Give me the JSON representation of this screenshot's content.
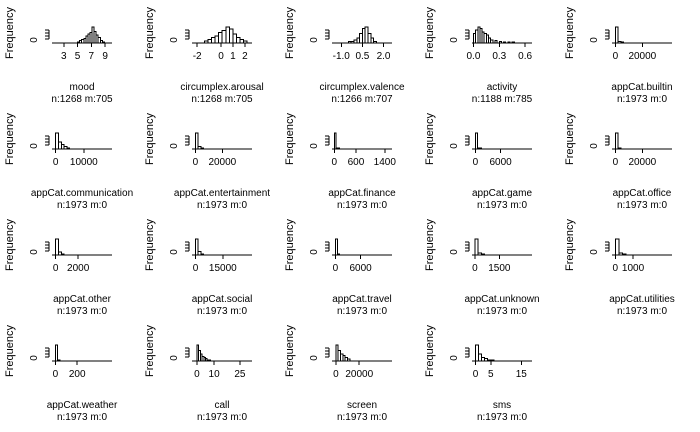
{
  "chart_data": [
    {
      "type": "bar",
      "xlabel": "mood",
      "subtitle": "n:1268 m:705",
      "ylabel": "Frequency",
      "y_tick": "0",
      "x_ticks": [
        "3",
        "5",
        "7",
        "9"
      ],
      "x_tick_values": [
        3,
        5,
        7,
        9
      ],
      "xlim": [
        1,
        10
      ],
      "bins_x": [
        5.0,
        5.3,
        5.6,
        5.9,
        6.2,
        6.5,
        6.8,
        7.1,
        7.4,
        7.7,
        8.0,
        8.3,
        8.6
      ],
      "values": [
        1,
        2,
        3,
        4,
        6,
        8,
        9,
        14,
        10,
        7,
        5,
        2,
        1
      ],
      "ymax": 14
    },
    {
      "type": "bar",
      "xlabel": "circumplex.arousal",
      "subtitle": "n:1268 m:705",
      "ylabel": "Frequency",
      "y_tick": "0",
      "x_ticks": [
        "-2",
        "0",
        "1",
        "2"
      ],
      "x_tick_values": [
        -2,
        0,
        1,
        2
      ],
      "xlim": [
        -2.6,
        2.6
      ],
      "bins_x": [
        -1.4,
        -1.1,
        -0.8,
        -0.5,
        -0.2,
        0.1,
        0.4,
        0.7,
        1.0,
        1.3,
        1.6,
        1.9
      ],
      "values": [
        1,
        2,
        3,
        4,
        6,
        7,
        9,
        8,
        5,
        3,
        2,
        1
      ],
      "ymax": 9
    },
    {
      "type": "bar",
      "xlabel": "circumplex.valence",
      "subtitle": "n:1266 m:707",
      "ylabel": "Frequency",
      "y_tick": "0",
      "x_ticks": [
        "-1.0",
        "0.5",
        "2.0"
      ],
      "x_tick_values": [
        -1,
        0.5,
        2
      ],
      "xlim": [
        -1.8,
        2.6
      ],
      "bins_x": [
        -0.5,
        -0.3,
        -0.1,
        0.1,
        0.3,
        0.5,
        0.7,
        0.9,
        1.1,
        1.3
      ],
      "values": [
        1,
        1,
        2,
        3,
        6,
        9,
        10,
        6,
        3,
        1
      ],
      "ymax": 10
    },
    {
      "type": "bar",
      "xlabel": "activity",
      "subtitle": "n:1188 m:785",
      "ylabel": "Frequency",
      "y_tick": "0",
      "x_ticks": [
        "0.0",
        "0.3",
        "0.6"
      ],
      "x_tick_values": [
        0,
        0.3,
        0.6
      ],
      "xlim": [
        -0.04,
        0.68
      ],
      "bins_x": [
        0.0,
        0.025,
        0.05,
        0.075,
        0.1,
        0.125,
        0.15,
        0.175,
        0.2,
        0.25,
        0.3,
        0.35,
        0.4,
        0.45
      ],
      "values": [
        6,
        8,
        10,
        9,
        7,
        6,
        5,
        3,
        2,
        1.5,
        1,
        0.5,
        0.5,
        0.3
      ],
      "ymax": 10
    },
    {
      "type": "bar",
      "xlabel": "appCat.builtin",
      "subtitle": "n:1973 m:0",
      "ylabel": "Frequency",
      "y_tick": "0",
      "x_ticks": [
        "0",
        "20000"
      ],
      "x_tick_values": [
        0,
        20000
      ],
      "xlim": [
        -4000,
        42000
      ],
      "bins_x": [
        0,
        2000,
        4000
      ],
      "values": [
        10,
        1,
        0.3
      ],
      "ymax": 10
    },
    {
      "type": "bar",
      "xlabel": "appCat.communication",
      "subtitle": "n:1973 m:0",
      "ylabel": "Frequency",
      "y_tick": "0",
      "x_ticks": [
        "0",
        "10000"
      ],
      "x_tick_values": [
        0,
        10000
      ],
      "xlim": [
        -2000,
        20000
      ],
      "bins_x": [
        0,
        1000,
        2000,
        3000,
        4000
      ],
      "values": [
        14,
        6,
        4,
        2,
        1
      ],
      "ymax": 14
    },
    {
      "type": "bar",
      "xlabel": "appCat.entertainment",
      "subtitle": "n:1973 m:0",
      "ylabel": "Frequency",
      "y_tick": "0",
      "x_ticks": [
        "0",
        "20000"
      ],
      "x_tick_values": [
        0,
        20000
      ],
      "xlim": [
        -4000,
        42000
      ],
      "bins_x": [
        0,
        2000,
        4000
      ],
      "values": [
        12,
        2,
        0.5
      ],
      "ymax": 12
    },
    {
      "type": "bar",
      "xlabel": "appCat.finance",
      "subtitle": "n:1973 m:0",
      "ylabel": "Frequency",
      "y_tick": "0",
      "x_ticks": [
        "0",
        "600",
        "1400"
      ],
      "x_tick_values": [
        0,
        600,
        1400
      ],
      "xlim": [
        -120,
        1600
      ],
      "bins_x": [
        0,
        50,
        100
      ],
      "values": [
        14,
        1,
        0.3
      ],
      "ymax": 14
    },
    {
      "type": "bar",
      "xlabel": "appCat.game",
      "subtitle": "n:1973 m:0",
      "ylabel": "Frequency",
      "y_tick": "0",
      "x_ticks": [
        "0",
        "6000"
      ],
      "x_tick_values": [
        0,
        6000
      ],
      "xlim": [
        -1300,
        13500
      ],
      "bins_x": [
        0,
        500,
        1000
      ],
      "values": [
        14,
        1,
        0.3
      ],
      "ymax": 14
    },
    {
      "type": "bar",
      "xlabel": "appCat.office",
      "subtitle": "n:1973 m:0",
      "ylabel": "Frequency",
      "y_tick": "0",
      "x_ticks": [
        "0",
        "20000"
      ],
      "x_tick_values": [
        0,
        20000
      ],
      "xlim": [
        -4000,
        42000
      ],
      "bins_x": [
        0,
        2000
      ],
      "values": [
        9,
        0.3
      ],
      "ymax": 9
    },
    {
      "type": "bar",
      "xlabel": "appCat.other",
      "subtitle": "n:1973 m:0",
      "ylabel": "Frequency",
      "y_tick": "0",
      "x_ticks": [
        "0",
        "2000"
      ],
      "x_tick_values": [
        0,
        2000
      ],
      "xlim": [
        -500,
        5000
      ],
      "bins_x": [
        0,
        250,
        500
      ],
      "values": [
        10,
        2,
        0.5
      ],
      "ymax": 10
    },
    {
      "type": "bar",
      "xlabel": "appCat.social",
      "subtitle": "n:1973 m:0",
      "ylabel": "Frequency",
      "y_tick": "0",
      "x_ticks": [
        "0",
        "15000"
      ],
      "x_tick_values": [
        0,
        15000
      ],
      "xlim": [
        -3000,
        31000
      ],
      "bins_x": [
        0,
        1500,
        3000
      ],
      "values": [
        14,
        3,
        1
      ],
      "ymax": 14
    },
    {
      "type": "bar",
      "xlabel": "appCat.travel",
      "subtitle": "n:1973 m:0",
      "ylabel": "Frequency",
      "y_tick": "0",
      "x_ticks": [
        "0",
        "6000"
      ],
      "x_tick_values": [
        0,
        6000
      ],
      "xlim": [
        -1300,
        13500
      ],
      "bins_x": [
        0,
        500
      ],
      "values": [
        8,
        0.5
      ],
      "ymax": 8
    },
    {
      "type": "bar",
      "xlabel": "appCat.unknown",
      "subtitle": "n:1973 m:0",
      "ylabel": "Frequency",
      "y_tick": "0",
      "x_ticks": [
        "0",
        "1500"
      ],
      "x_tick_values": [
        0,
        1500
      ],
      "xlim": [
        -300,
        3500
      ],
      "bins_x": [
        0,
        200,
        400
      ],
      "values": [
        9,
        1,
        0.3
      ],
      "ymax": 9
    },
    {
      "type": "bar",
      "xlabel": "appCat.utilities",
      "subtitle": "n:1973 m:0",
      "ylabel": "Frequency",
      "y_tick": "0",
      "x_ticks": [
        "0",
        "1000"
      ],
      "x_tick_values": [
        0,
        1000
      ],
      "xlim": [
        -300,
        3200
      ],
      "bins_x": [
        0,
        200,
        400
      ],
      "values": [
        9,
        1,
        0.3
      ],
      "ymax": 9
    },
    {
      "type": "bar",
      "xlabel": "appCat.weather",
      "subtitle": "n:1973 m:0",
      "ylabel": "Frequency",
      "y_tick": "0",
      "x_ticks": [
        "0",
        "200"
      ],
      "x_tick_values": [
        0,
        200
      ],
      "xlim": [
        -50,
        520
      ],
      "bins_x": [
        0,
        20
      ],
      "values": [
        8,
        0.5
      ],
      "ymax": 8
    },
    {
      "type": "bar",
      "xlabel": "call",
      "subtitle": "n:1973 m:0",
      "ylabel": "Frequency",
      "y_tick": "0",
      "x_ticks": [
        "0",
        "10",
        "25"
      ],
      "x_tick_values": [
        0,
        10,
        25
      ],
      "xlim": [
        -4,
        32
      ],
      "bins_x": [
        0,
        1,
        2,
        3,
        4,
        5,
        6,
        7
      ],
      "values": [
        14,
        9,
        6,
        4,
        3,
        2,
        1,
        0.5
      ],
      "ymax": 14
    },
    {
      "type": "bar",
      "xlabel": "screen",
      "subtitle": "n:1973 m:0",
      "ylabel": "Frequency",
      "y_tick": "0",
      "x_ticks": [
        "0",
        "20000"
      ],
      "x_tick_values": [
        0,
        20000
      ],
      "xlim": [
        -5000,
        48000
      ],
      "bins_x": [
        0,
        2000,
        4000,
        6000,
        8000,
        10000
      ],
      "values": [
        9,
        6,
        4,
        3,
        2,
        1
      ],
      "ymax": 9
    },
    {
      "type": "bar",
      "xlabel": "sms",
      "subtitle": "n:1973 m:0",
      "ylabel": "Frequency",
      "y_tick": "0",
      "x_ticks": [
        "0",
        "5",
        "15"
      ],
      "x_tick_values": [
        0,
        5,
        15
      ],
      "xlim": [
        -1.8,
        18.5
      ],
      "bins_x": [
        0,
        1,
        2,
        3,
        4,
        5
      ],
      "values": [
        14,
        6,
        3,
        2,
        1,
        0.5
      ],
      "ymax": 14
    }
  ]
}
